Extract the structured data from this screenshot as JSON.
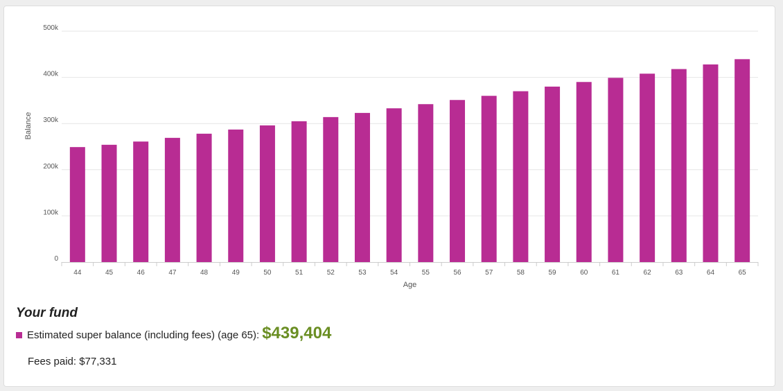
{
  "colors": {
    "bar": "#b82c93",
    "accent_value": "#6a8e23",
    "grid": "#e6e6e6",
    "axis": "#cccccc"
  },
  "chart_data": {
    "type": "bar",
    "categories": [
      "44",
      "45",
      "46",
      "47",
      "48",
      "49",
      "50",
      "51",
      "52",
      "53",
      "54",
      "55",
      "56",
      "57",
      "58",
      "59",
      "60",
      "61",
      "62",
      "63",
      "64",
      "65"
    ],
    "values": [
      249000,
      254000,
      261000,
      269000,
      278000,
      287000,
      296000,
      305000,
      314000,
      323000,
      333000,
      342000,
      351000,
      360000,
      370000,
      380000,
      390000,
      399000,
      408000,
      418000,
      428000,
      439404
    ],
    "title": "",
    "xlabel": "Age",
    "ylabel": "Balance",
    "ylim": [
      0,
      500000
    ],
    "yticks": [
      {
        "value": 0,
        "label": "0"
      },
      {
        "value": 100000,
        "label": "100k"
      },
      {
        "value": 200000,
        "label": "200k"
      },
      {
        "value": 300000,
        "label": "300k"
      },
      {
        "value": 400000,
        "label": "400k"
      },
      {
        "value": 500000,
        "label": "500k"
      }
    ],
    "grid": true,
    "legend": "bottom-left"
  },
  "fund": {
    "title": "Your fund",
    "legend_label": "Estimated super balance (including fees) (age 65):",
    "legend_value": "$439,404",
    "fees_label": "Fees paid: $77,331"
  }
}
